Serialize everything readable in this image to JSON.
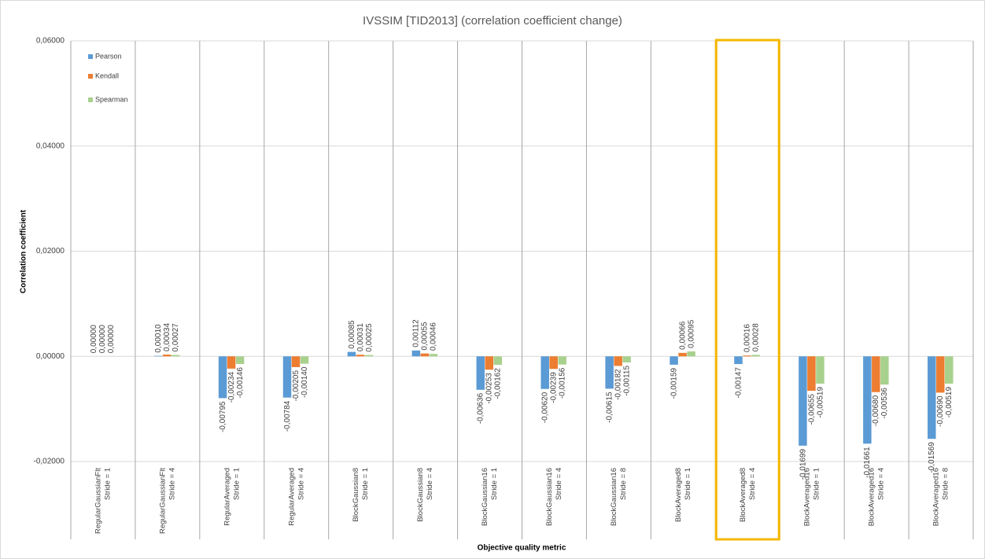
{
  "chart_data": {
    "type": "bar",
    "title": "IVSSIM [TID2013] (correlation coefficient change)",
    "y_label": "Correlation coefficient",
    "x_label": "Objective quality metric",
    "categories": [
      [
        "RegularGaussianFlt",
        "Stride = 1"
      ],
      [
        "RegularGaussianFlt",
        "Stride = 4"
      ],
      [
        "RegularAveraged",
        "Stride = 1"
      ],
      [
        "RegularAveraged",
        "Stride = 4"
      ],
      [
        "BlockGaussian8",
        "Stride = 1"
      ],
      [
        "BlockGaussian8",
        "Stride = 4"
      ],
      [
        "BlockGaussian16",
        "Stride = 1"
      ],
      [
        "BlockGaussian16",
        "Stride = 4"
      ],
      [
        "BlockGaussian16",
        "Stride = 8"
      ],
      [
        "BlockAveraged8",
        "Stride = 1"
      ],
      [
        "BlockAveraged8",
        "Stride = 4"
      ],
      [
        "BlockAveraged16",
        "Stride = 1"
      ],
      [
        "BlockAveraged16",
        "Stride = 4"
      ],
      [
        "BlockAveraged16",
        "Stride = 8"
      ]
    ],
    "series": [
      {
        "name": "Pearson",
        "color": "#5b9bd5",
        "values": [
          0,
          0.0001,
          -0.00795,
          -0.00784,
          0.00085,
          0.00112,
          -0.00636,
          -0.0062,
          -0.00615,
          -0.00159,
          -0.00147,
          -0.01699,
          -0.01661,
          -0.01569
        ],
        "value_labels": [
          "0,00000",
          "0,00010",
          "-0,00795",
          "-0,00784",
          "0,00085",
          "0,00112",
          "-0,00636",
          "-0,00620",
          "-0,00615",
          "-0,00159",
          "-0,00147",
          "-0,01699",
          "-0,01661",
          "-0,01569"
        ]
      },
      {
        "name": "Kendall",
        "color": "#ed7d31",
        "values": [
          0,
          0.00034,
          -0.00234,
          -0.00205,
          0.00031,
          0.00055,
          -0.00253,
          -0.00239,
          -0.00182,
          0.00066,
          0.00016,
          -0.00655,
          -0.0068,
          -0.0069
        ],
        "value_labels": [
          "0,00000",
          "0,00034",
          "-0,00234",
          "-0,00205",
          "0,00031",
          "0,00055",
          "-0,00253",
          "-0,00239",
          "-0,00182",
          "0,00066",
          "0,00016",
          "-0,00655",
          "-0,00680",
          "-0,00690"
        ]
      },
      {
        "name": "Spearman",
        "color": "#a9d18e",
        "values": [
          0,
          0.00027,
          -0.00146,
          -0.0014,
          0.00025,
          0.00046,
          -0.00162,
          -0.00156,
          -0.00115,
          0.00095,
          0.00028,
          -0.00519,
          -0.00536,
          -0.00519
        ],
        "value_labels": [
          "0,00000",
          "0,00027",
          "-0,00146",
          "-0,00140",
          "0,00025",
          "0,00046",
          "-0,00162",
          "-0,00156",
          "-0,00115",
          "0,00095",
          "0,00028",
          "-0,00519",
          "-0,00536",
          "-0,00519"
        ]
      }
    ],
    "ylim": [
      -0.02,
      0.06
    ],
    "yticks": [
      {
        "value": -0.02,
        "label": "-0,02000"
      },
      {
        "value": 0,
        "label": "0,00000"
      },
      {
        "value": 0.02,
        "label": "0,02000"
      },
      {
        "value": 0.04,
        "label": "0,04000"
      },
      {
        "value": 0.06,
        "label": "0,06000"
      }
    ],
    "grid": true,
    "legend": "upper left"
  }
}
